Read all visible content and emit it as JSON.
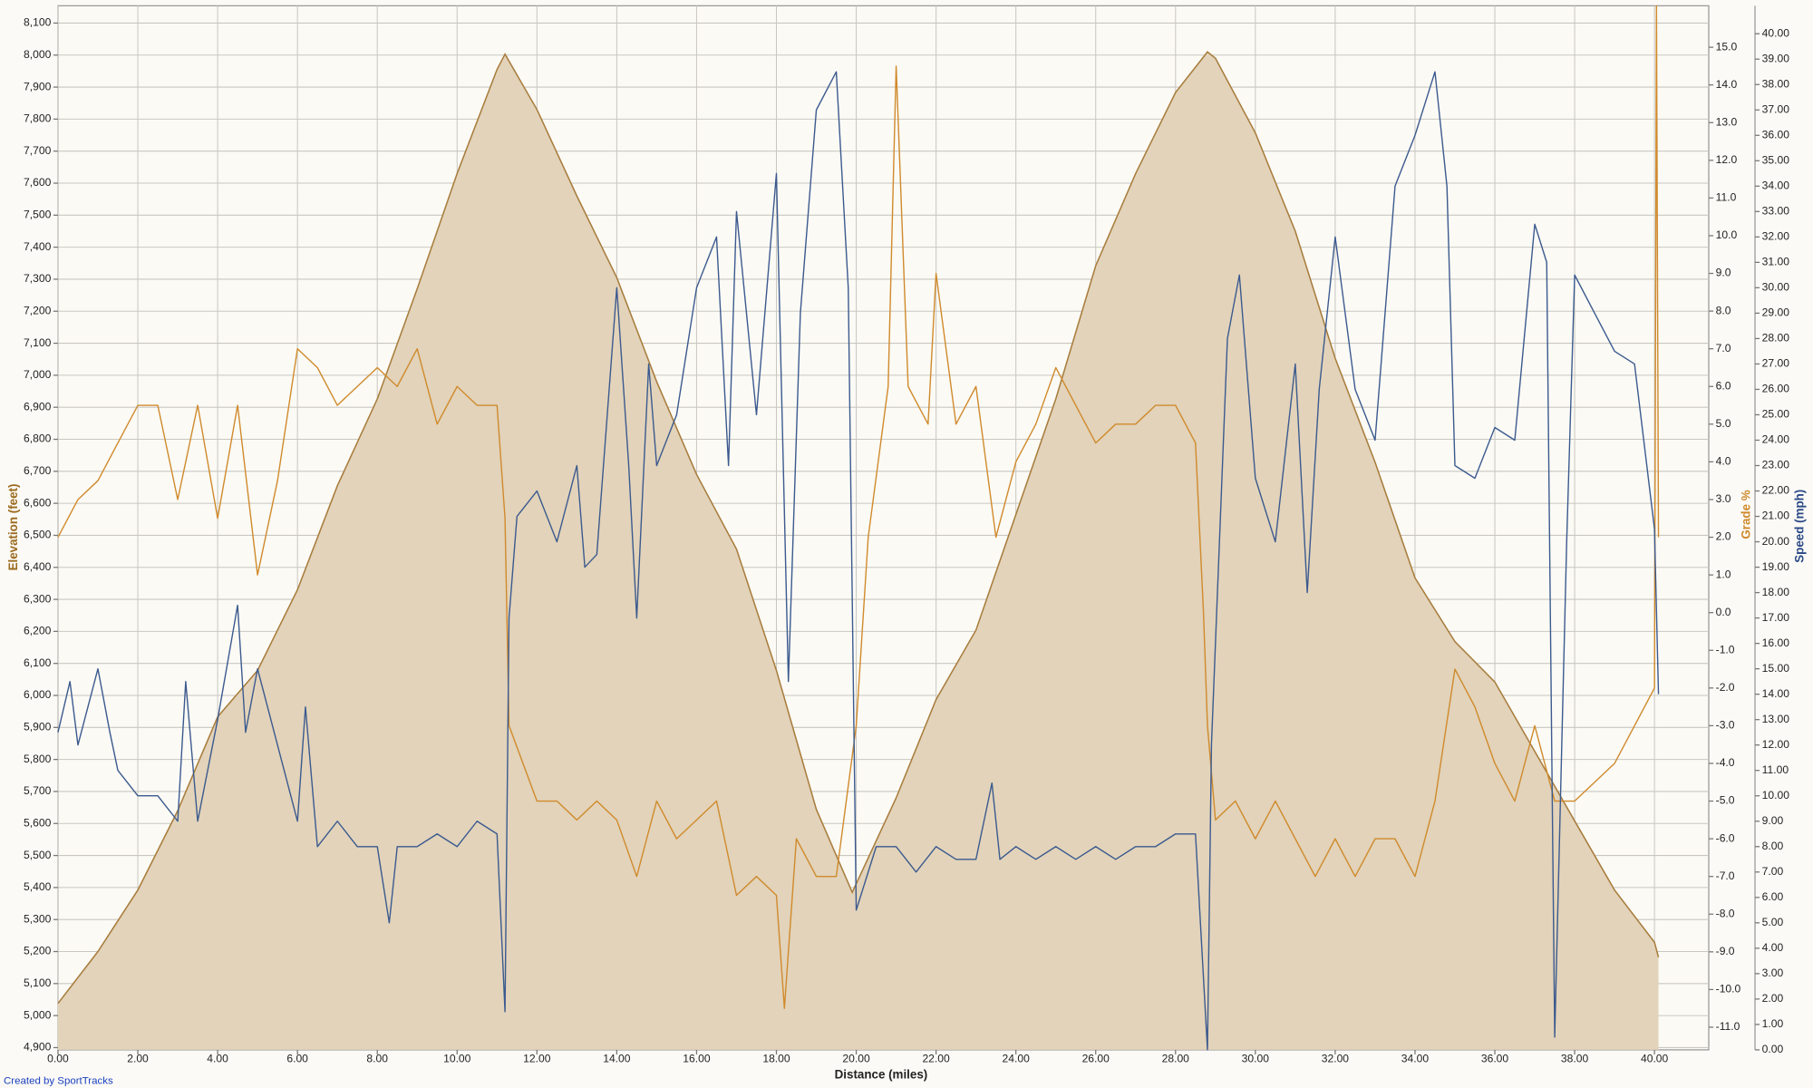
{
  "chart_data": {
    "type": "line",
    "x_label": "Distance (miles)",
    "y_label": "Elevation (feet)",
    "y2_label": "Grade %",
    "y3_label": "Speed (mph)",
    "footer": "Created by SportTracks",
    "grid": true,
    "xlim": [
      0,
      41.36
    ],
    "ylim": [
      4893,
      8154
    ],
    "y2lim": [
      -11.6,
      16.1
    ],
    "y3lim": [
      0,
      41.1
    ],
    "xticks": [
      {
        "value": 0,
        "label": "0.00"
      },
      {
        "value": 2,
        "label": "2.00"
      },
      {
        "value": 4,
        "label": "4.00"
      },
      {
        "value": 6,
        "label": "6.00"
      },
      {
        "value": 8,
        "label": "8.00"
      },
      {
        "value": 10,
        "label": "10.00"
      },
      {
        "value": 12,
        "label": "12.00"
      },
      {
        "value": 14,
        "label": "14.00"
      },
      {
        "value": 16,
        "label": "16.00"
      },
      {
        "value": 18,
        "label": "18.00"
      },
      {
        "value": 20,
        "label": "20.00"
      },
      {
        "value": 22,
        "label": "22.00"
      },
      {
        "value": 24,
        "label": "24.00"
      },
      {
        "value": 26,
        "label": "26.00"
      },
      {
        "value": 28,
        "label": "28.00"
      },
      {
        "value": 30,
        "label": "30.00"
      },
      {
        "value": 32,
        "label": "32.00"
      },
      {
        "value": 34,
        "label": "34.00"
      },
      {
        "value": 36,
        "label": "36.00"
      },
      {
        "value": 38,
        "label": "38.00"
      },
      {
        "value": 40,
        "label": "40.00"
      }
    ],
    "yticks": [
      {
        "value": 4900,
        "label": "4,900"
      },
      {
        "value": 5000,
        "label": "5,000"
      },
      {
        "value": 5100,
        "label": "5,100"
      },
      {
        "value": 5200,
        "label": "5,200"
      },
      {
        "value": 5300,
        "label": "5,300"
      },
      {
        "value": 5400,
        "label": "5,400"
      },
      {
        "value": 5500,
        "label": "5,500"
      },
      {
        "value": 5600,
        "label": "5,600"
      },
      {
        "value": 5700,
        "label": "5,700"
      },
      {
        "value": 5800,
        "label": "5,800"
      },
      {
        "value": 5900,
        "label": "5,900"
      },
      {
        "value": 6000,
        "label": "6,000"
      },
      {
        "value": 6100,
        "label": "6,100"
      },
      {
        "value": 6200,
        "label": "6,200"
      },
      {
        "value": 6300,
        "label": "6,300"
      },
      {
        "value": 6400,
        "label": "6,400"
      },
      {
        "value": 6500,
        "label": "6,500"
      },
      {
        "value": 6600,
        "label": "6,600"
      },
      {
        "value": 6700,
        "label": "6,700"
      },
      {
        "value": 6800,
        "label": "6,800"
      },
      {
        "value": 6900,
        "label": "6,900"
      },
      {
        "value": 7000,
        "label": "7,000"
      },
      {
        "value": 7100,
        "label": "7,100"
      },
      {
        "value": 7200,
        "label": "7,200"
      },
      {
        "value": 7300,
        "label": "7,300"
      },
      {
        "value": 7400,
        "label": "7,400"
      },
      {
        "value": 7500,
        "label": "7,500"
      },
      {
        "value": 7600,
        "label": "7,600"
      },
      {
        "value": 7700,
        "label": "7,700"
      },
      {
        "value": 7800,
        "label": "7,800"
      },
      {
        "value": 7900,
        "label": "7,900"
      },
      {
        "value": 8000,
        "label": "8,000"
      },
      {
        "value": 8100,
        "label": "8,100"
      }
    ],
    "y2ticks": [
      {
        "value": -11,
        "label": "-11.0"
      },
      {
        "value": -10,
        "label": "-10.0"
      },
      {
        "value": -9,
        "label": "-9.0"
      },
      {
        "value": -8,
        "label": "-8.0"
      },
      {
        "value": -7,
        "label": "-7.0"
      },
      {
        "value": -6,
        "label": "-6.0"
      },
      {
        "value": -5,
        "label": "-5.0"
      },
      {
        "value": -4,
        "label": "-4.0"
      },
      {
        "value": -3,
        "label": "-3.0"
      },
      {
        "value": -2,
        "label": "-2.0"
      },
      {
        "value": -1,
        "label": "-1.0"
      },
      {
        "value": 0,
        "label": "0.0"
      },
      {
        "value": 1,
        "label": "1.0"
      },
      {
        "value": 2,
        "label": "2.0"
      },
      {
        "value": 3,
        "label": "3.0"
      },
      {
        "value": 4,
        "label": "4.0"
      },
      {
        "value": 5,
        "label": "5.0"
      },
      {
        "value": 6,
        "label": "6.0"
      },
      {
        "value": 7,
        "label": "7.0"
      },
      {
        "value": 8,
        "label": "8.0"
      },
      {
        "value": 9,
        "label": "9.0"
      },
      {
        "value": 10,
        "label": "10.0"
      },
      {
        "value": 11,
        "label": "11.0"
      },
      {
        "value": 12,
        "label": "12.0"
      },
      {
        "value": 13,
        "label": "13.0"
      },
      {
        "value": 14,
        "label": "14.0"
      },
      {
        "value": 15,
        "label": "15.0"
      }
    ],
    "y3ticks": [
      {
        "value": 0,
        "label": "0.00"
      },
      {
        "value": 1,
        "label": "1.00"
      },
      {
        "value": 2,
        "label": "2.00"
      },
      {
        "value": 3,
        "label": "3.00"
      },
      {
        "value": 4,
        "label": "4.00"
      },
      {
        "value": 5,
        "label": "5.00"
      },
      {
        "value": 6,
        "label": "6.00"
      },
      {
        "value": 7,
        "label": "7.00"
      },
      {
        "value": 8,
        "label": "8.00"
      },
      {
        "value": 9,
        "label": "9.00"
      },
      {
        "value": 10,
        "label": "10.00"
      },
      {
        "value": 11,
        "label": "11.00"
      },
      {
        "value": 12,
        "label": "12.00"
      },
      {
        "value": 13,
        "label": "13.00"
      },
      {
        "value": 14,
        "label": "14.00"
      },
      {
        "value": 15,
        "label": "15.00"
      },
      {
        "value": 16,
        "label": "16.00"
      },
      {
        "value": 17,
        "label": "17.00"
      },
      {
        "value": 18,
        "label": "18.00"
      },
      {
        "value": 19,
        "label": "19.00"
      },
      {
        "value": 20,
        "label": "20.00"
      },
      {
        "value": 21,
        "label": "21.00"
      },
      {
        "value": 22,
        "label": "22.00"
      },
      {
        "value": 23,
        "label": "23.00"
      },
      {
        "value": 24,
        "label": "24.00"
      },
      {
        "value": 25,
        "label": "25.00"
      },
      {
        "value": 26,
        "label": "26.00"
      },
      {
        "value": 27,
        "label": "27.00"
      },
      {
        "value": 28,
        "label": "28.00"
      },
      {
        "value": 29,
        "label": "29.00"
      },
      {
        "value": 30,
        "label": "30.00"
      },
      {
        "value": 31,
        "label": "31.00"
      },
      {
        "value": 32,
        "label": "32.00"
      },
      {
        "value": 33,
        "label": "33.00"
      },
      {
        "value": 34,
        "label": "34.00"
      },
      {
        "value": 35,
        "label": "35.00"
      },
      {
        "value": 36,
        "label": "36.00"
      },
      {
        "value": 37,
        "label": "37.00"
      },
      {
        "value": 38,
        "label": "38.00"
      },
      {
        "value": 39,
        "label": "39.00"
      },
      {
        "value": 40,
        "label": "40.00"
      }
    ],
    "series": [
      {
        "kind": "area",
        "axis": "y",
        "color": "#a87c3c",
        "fill": "#e2d3ba",
        "x": [
          0,
          1,
          2,
          3,
          4,
          5,
          6,
          7,
          8,
          9,
          10,
          11,
          11.2,
          12,
          13,
          14,
          15,
          16,
          17,
          18,
          19,
          19.9,
          21,
          22,
          23,
          24,
          25,
          26,
          27,
          28,
          28.8,
          29,
          30,
          31,
          32,
          33,
          34,
          35,
          36,
          37,
          38,
          39,
          40,
          40.1
        ],
        "values": [
          5038,
          5200,
          5392,
          5640,
          5933,
          6078,
          6330,
          6655,
          6926,
          7270,
          7630,
          7955,
          8003,
          7830,
          7560,
          7305,
          6980,
          6690,
          6457,
          6078,
          5644,
          5385,
          5680,
          5987,
          6204,
          6565,
          6926,
          7342,
          7630,
          7883,
          8010,
          7990,
          7757,
          7450,
          7053,
          6728,
          6367,
          6168,
          6042,
          5825,
          5608,
          5392,
          5229,
          5182
        ]
      },
      {
        "kind": "line",
        "axis": "y2",
        "color": "#d08a2c",
        "x": [
          0,
          0.5,
          1,
          1.5,
          2,
          2.5,
          3,
          3.5,
          4,
          4.5,
          5,
          5.5,
          6,
          6.5,
          7,
          7.5,
          8,
          8.5,
          9,
          9.5,
          10,
          10.5,
          11,
          11.2,
          11.3,
          12,
          12.5,
          13,
          13.5,
          14,
          14.5,
          15,
          15.5,
          16,
          16.5,
          17,
          17.5,
          18,
          18.2,
          18.5,
          19,
          19.5,
          20,
          20.3,
          20.8,
          21,
          21.3,
          21.8,
          22,
          22.5,
          23,
          23.5,
          24,
          24.5,
          25,
          25.5,
          26,
          26.5,
          27,
          27.5,
          28,
          28.5,
          28.7,
          28.8,
          29,
          29.5,
          30,
          30.5,
          31,
          31.5,
          32,
          32.5,
          33,
          33.5,
          34,
          34.5,
          35,
          35.5,
          36,
          36.5,
          37,
          37.5,
          38,
          38.5,
          39,
          39.5,
          40,
          40.05,
          40.1
        ],
        "values": [
          2,
          3,
          3.5,
          4.5,
          5.5,
          5.5,
          3,
          5.5,
          2.5,
          5.5,
          1,
          3.5,
          7,
          6.5,
          5.5,
          6,
          6.5,
          6,
          7,
          5,
          6,
          5.5,
          5.5,
          2.5,
          -3,
          -5,
          -5,
          -5.5,
          -5,
          -5.5,
          -7,
          -5,
          -6,
          -5.5,
          -5,
          -7.5,
          -7,
          -7.5,
          -10.5,
          -6,
          -7,
          -7,
          -3,
          2,
          6,
          14.5,
          6,
          5,
          9,
          5,
          6,
          2,
          4,
          5,
          6.5,
          5.5,
          4.5,
          5,
          5,
          5.5,
          5.5,
          4.5,
          0,
          -3,
          -5.5,
          -5,
          -6,
          -5,
          -6,
          -7,
          -6,
          -7,
          -6,
          -6,
          -7,
          -5,
          -1.5,
          -2.5,
          -4,
          -5,
          -3,
          -5,
          -5,
          -4.5,
          -4,
          -3,
          -2,
          16.1,
          2
        ]
      },
      {
        "kind": "line",
        "axis": "y3",
        "color": "#3c5a8e",
        "x": [
          0,
          0.3,
          0.5,
          1,
          1.3,
          1.5,
          2,
          2.5,
          3,
          3.2,
          3.5,
          4,
          4.5,
          4.7,
          5,
          5.5,
          6,
          6.2,
          6.5,
          7,
          7.5,
          8,
          8.3,
          8.5,
          9,
          9.5,
          10,
          10.5,
          11,
          11.2,
          11.3,
          11.5,
          12,
          12.5,
          13,
          13.2,
          13.5,
          14,
          14.3,
          14.5,
          14.8,
          15,
          15.5,
          16,
          16.5,
          16.8,
          17,
          17.5,
          18,
          18.3,
          18.6,
          19,
          19.5,
          19.8,
          20,
          20.5,
          21,
          21.5,
          22,
          22.5,
          23,
          23.4,
          23.6,
          24,
          24.5,
          25,
          25.5,
          26,
          26.5,
          27,
          27.5,
          28,
          28.5,
          28.8,
          28.9,
          29.3,
          29.6,
          30,
          30.5,
          31,
          31.3,
          31.6,
          32,
          32.5,
          33,
          33.5,
          34,
          34.5,
          34.8,
          35,
          35.5,
          36,
          36.5,
          37,
          37.3,
          37.5,
          37.8,
          38,
          38.5,
          39,
          39.5,
          40,
          40.1
        ],
        "values": [
          12.5,
          14.5,
          12,
          15,
          12.5,
          11,
          10,
          10,
          9,
          14.5,
          9,
          13,
          17.5,
          12.5,
          15,
          12,
          9,
          13.5,
          8,
          9,
          8,
          8,
          5,
          8,
          8,
          8.5,
          8,
          9,
          8.5,
          1.5,
          17,
          21,
          22,
          20,
          23,
          19,
          19.5,
          30,
          23,
          17,
          27,
          23,
          25,
          30,
          32,
          23,
          33,
          25,
          34.5,
          14.5,
          29,
          37,
          38.5,
          30,
          5.5,
          8,
          8,
          7,
          8,
          7.5,
          7.5,
          10.5,
          7.5,
          8,
          7.5,
          8,
          7.5,
          8,
          7.5,
          8,
          8,
          8.5,
          8.5,
          0,
          12,
          28,
          30.5,
          22.5,
          20,
          27,
          18,
          26,
          32,
          26,
          24,
          34,
          36,
          38.5,
          34,
          23,
          22.5,
          24.5,
          24,
          32.5,
          31,
          0.5,
          20,
          30.5,
          29,
          27.5,
          27,
          20.5,
          14
        ]
      }
    ]
  }
}
